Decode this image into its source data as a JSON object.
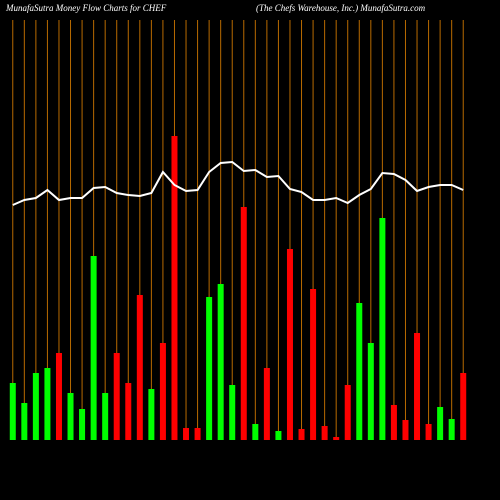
{
  "chart_data": {
    "type": "bar",
    "title": "MunafaSutra  Money Flow  Charts for CHEF",
    "subtitle": "(The    Chefs Warehouse, Inc.) MunafaSutra.com",
    "ylim": [
      0,
      310
    ],
    "bar_colors": [
      "#00ff00",
      "#00ff00",
      "#00ff00",
      "#00ff00",
      "#ff0000",
      "#00ff00",
      "#00ff00",
      "#00ff00",
      "#00ff00",
      "#ff0000",
      "#ff0000",
      "#ff0000",
      "#00ff00",
      "#ff0000",
      "#ff0000",
      "#ff0000",
      "#ff0000",
      "#00ff00",
      "#00ff00",
      "#00ff00",
      "#ff0000",
      "#00ff00",
      "#ff0000",
      "#00ff00",
      "#ff0000",
      "#ff0000",
      "#ff0000",
      "#ff0000",
      "#ff0000",
      "#ff0000",
      "#00ff00",
      "#00ff00",
      "#00ff00",
      "#ff0000",
      "#ff0000",
      "#ff0000",
      "#ff0000",
      "#00ff00",
      "#00ff00",
      "#ff0000"
    ],
    "values": [
      57,
      37,
      67,
      72,
      87,
      47,
      31,
      184,
      47,
      87,
      57,
      145,
      51,
      97,
      304,
      12,
      12,
      143,
      156,
      55,
      233,
      16,
      72,
      9,
      191,
      11,
      151,
      14,
      3,
      55,
      137,
      97,
      222,
      35,
      20,
      107,
      16,
      33,
      21,
      67
    ],
    "line_color": "#ffffff",
    "line_values": [
      235,
      240,
      242,
      250,
      240,
      242,
      242,
      252,
      253,
      247,
      245,
      244,
      247,
      268,
      255,
      249,
      250,
      268,
      277,
      278,
      269,
      270,
      263,
      264,
      251,
      248,
      240,
      240,
      242,
      237,
      245,
      251,
      267,
      266,
      260,
      249,
      253,
      255,
      255,
      250
    ],
    "vline_color": "#b86a00"
  }
}
